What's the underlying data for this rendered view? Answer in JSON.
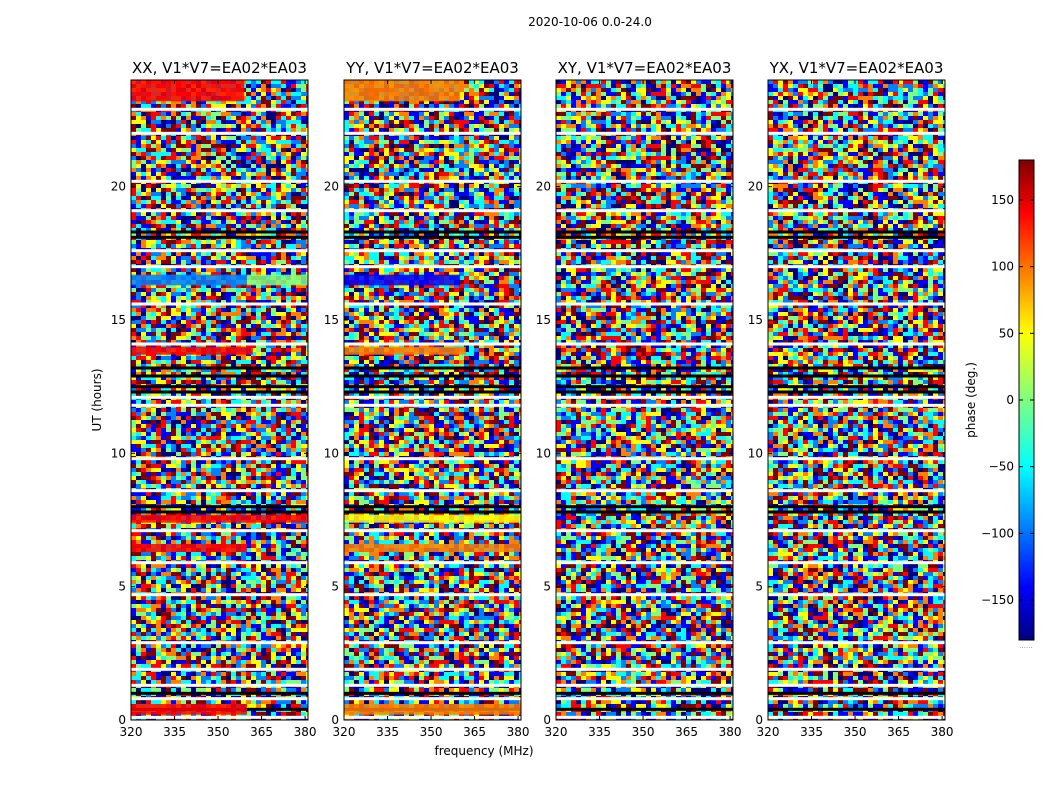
{
  "figure": {
    "suptitle": "2020-10-06 0.0-24.0",
    "xlabel": "frequency (MHz)",
    "ylabel": "UT (hours)",
    "colorbar_label": "phase (deg.)",
    "colorbar_ticks": [
      150,
      100,
      50,
      0,
      -50,
      -100,
      -150
    ],
    "colorbar_tick_labels": [
      "150",
      "100",
      "50",
      "0",
      "−50",
      "−100",
      "−150"
    ],
    "colorbar_range": [
      -180,
      180
    ],
    "colorbar_footer": "......",
    "colormap": "jet",
    "colors": {
      "jet": [
        "#00007f",
        "#0000ff",
        "#007fff",
        "#00ffff",
        "#7fff7f",
        "#ffff00",
        "#ff7f00",
        "#ff0000",
        "#7f0000"
      ],
      "gap": "#ffffff",
      "dense_band": "#000000"
    }
  },
  "chart_data": [
    {
      "type": "heatmap",
      "title": "XX, V1*V7=EA02*EA03",
      "xlim": [
        320,
        381
      ],
      "ylim": [
        0,
        24
      ],
      "xticks": [
        320,
        335,
        350,
        365,
        380
      ],
      "yticks": [
        0,
        5,
        10,
        15,
        20
      ],
      "xticklabels": [
        "320",
        "335",
        "350",
        "365",
        "380"
      ],
      "yticklabels": [
        "0",
        "5",
        "10",
        "15",
        "20"
      ],
      "coherent_bands": [
        {
          "ut": [
            23.2,
            24.0
          ],
          "freq": [
            320,
            359
          ],
          "phase": 140
        },
        {
          "ut": [
            16.3,
            16.7
          ],
          "freq": [
            320,
            360
          ],
          "phase": -80
        },
        {
          "ut": [
            16.3,
            16.7
          ],
          "freq": [
            360,
            381
          ],
          "phase": -10
        },
        {
          "ut": [
            13.7,
            14.0
          ],
          "freq": [
            320,
            362
          ],
          "phase": 130
        },
        {
          "ut": [
            7.4,
            7.7
          ],
          "freq": [
            320,
            381
          ],
          "phase": 120
        },
        {
          "ut": [
            6.3,
            6.6
          ],
          "freq": [
            320,
            360
          ],
          "phase": 150
        },
        {
          "ut": [
            0.2,
            0.6
          ],
          "freq": [
            320,
            360
          ],
          "phase": 120
        }
      ]
    },
    {
      "type": "heatmap",
      "title": "YY, V1*V7=EA02*EA03",
      "xlim": [
        320,
        381
      ],
      "ylim": [
        0,
        24
      ],
      "xticks": [
        320,
        335,
        350,
        365,
        380
      ],
      "yticks": [
        0,
        5,
        10,
        15,
        20
      ],
      "xticklabels": [
        "320",
        "335",
        "350",
        "365",
        "380"
      ],
      "yticklabels": [
        "0",
        "5",
        "10",
        "15",
        "20"
      ],
      "coherent_bands": [
        {
          "ut": [
            23.2,
            24.0
          ],
          "freq": [
            320,
            360
          ],
          "phase": 100
        },
        {
          "ut": [
            16.3,
            16.7
          ],
          "freq": [
            320,
            360
          ],
          "phase": -130
        },
        {
          "ut": [
            13.7,
            14.0
          ],
          "freq": [
            320,
            362
          ],
          "phase": 80
        },
        {
          "ut": [
            7.4,
            7.7
          ],
          "freq": [
            320,
            381
          ],
          "phase": 60
        },
        {
          "ut": [
            6.3,
            6.6
          ],
          "freq": [
            320,
            381
          ],
          "phase": 80
        },
        {
          "ut": [
            0.2,
            0.6
          ],
          "freq": [
            320,
            381
          ],
          "phase": 70
        }
      ]
    },
    {
      "type": "heatmap",
      "title": "XY, V1*V7=EA02*EA03",
      "xlim": [
        320,
        381
      ],
      "ylim": [
        0,
        24
      ],
      "xticks": [
        320,
        335,
        350,
        365,
        380
      ],
      "yticks": [
        0,
        5,
        10,
        15,
        20
      ],
      "xticklabels": [
        "320",
        "335",
        "350",
        "365",
        "380"
      ],
      "yticklabels": [
        "0",
        "5",
        "10",
        "15",
        "20"
      ],
      "coherent_bands": []
    },
    {
      "type": "heatmap",
      "title": "YX, V1*V7=EA02*EA03",
      "xlim": [
        320,
        381
      ],
      "ylim": [
        0,
        24
      ],
      "xticks": [
        320,
        335,
        350,
        365,
        380
      ],
      "yticks": [
        0,
        5,
        10,
        15,
        20
      ],
      "xticklabels": [
        "320",
        "335",
        "350",
        "365",
        "380"
      ],
      "yticklabels": [
        "0",
        "5",
        "10",
        "15",
        "20"
      ],
      "coherent_bands": []
    }
  ],
  "shared_structure": {
    "gap_rows_ut": [
      22.9,
      22.0,
      20.2,
      19.1,
      17.6,
      17.0,
      15.6,
      14.1,
      12.1,
      11.8,
      9.8,
      8.6,
      7.1,
      5.9,
      4.7,
      2.9,
      1.9,
      1.3,
      0.8,
      0.1
    ],
    "dense_rows_ut": [
      18.1,
      18.3,
      13.2,
      12.9,
      12.5,
      12.3,
      8.0,
      7.8,
      1.0,
      0.4
    ]
  }
}
